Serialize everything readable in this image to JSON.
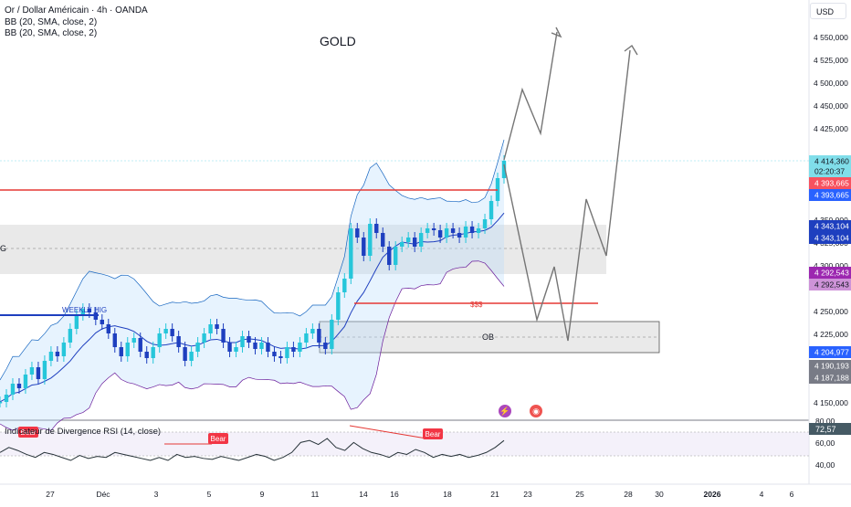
{
  "legend": {
    "symbol": "Or / Dollar Américain · 4h · OANDA",
    "indicator_1": "BB (20, SMA, close, 2)",
    "indicator_2": "BB (20, SMA, close, 2)"
  },
  "currency": "USD",
  "annotations": {
    "title": "GOLD",
    "weekly_high": "WEEKLY HIG",
    "sss": "$$$",
    "ob": "OB",
    "left_zone_label": "G",
    "bear_1": "Bear",
    "bear_2": "Bear",
    "bear_3": "Bear"
  },
  "rsi_legend": "Indicateur de Divergence RSI (14, close)",
  "rsi_axis": [
    "80,00",
    "60,00",
    "40,00"
  ],
  "rsi_tag": "72,57",
  "price_axis": [
    "4 550,000",
    "4 525,000",
    "4 500,000",
    "4 450,000",
    "4 425,000",
    "4 350,000",
    "4 325,000",
    "4 300,000",
    "4 250,000",
    "4 225,000",
    "4 150,000"
  ],
  "price_tags": [
    {
      "text": "4 414,360",
      "color": "#80deea",
      "fg": "#131722"
    },
    {
      "text": "02:20:37",
      "color": "#80deea",
      "fg": "#131722"
    },
    {
      "text": "4 393,665",
      "color": "#f7525f",
      "fg": "#ffffff"
    },
    {
      "text": "4 393,665",
      "color": "#2962ff",
      "fg": "#ffffff"
    },
    {
      "text": "4 343,104",
      "color": "#1e3fbf",
      "fg": "#ffffff"
    },
    {
      "text": "4 343,104",
      "color": "#1e3fbf",
      "fg": "#ffffff"
    },
    {
      "text": "4 292,543",
      "color": "#9c27b0",
      "fg": "#ffffff"
    },
    {
      "text": "4 292,543",
      "color": "#ce93d8",
      "fg": "#131722"
    },
    {
      "text": "4 204,977",
      "color": "#2962ff",
      "fg": "#ffffff"
    },
    {
      "text": "4 190,193",
      "color": "#787b86",
      "fg": "#ffffff"
    },
    {
      "text": "4 187,188",
      "color": "#787b86",
      "fg": "#ffffff"
    }
  ],
  "time_axis": [
    "27",
    "Déc",
    "3",
    "5",
    "9",
    "11",
    "14",
    "16",
    "18",
    "21",
    "23",
    "25",
    "28",
    "30",
    "2026",
    "4",
    "6"
  ],
  "chart_data": {
    "type": "line",
    "title": "GOLD",
    "series_info": "Or / Dollar Américain · 4h · OANDA",
    "ylim": [
      4130,
      4570
    ],
    "current_price": 4414.36,
    "levels": {
      "red_line": 4393.665,
      "bb_basis": 4343.104,
      "bb_lower": 4292.543,
      "weekly_high": 4250,
      "sss": 4260,
      "ob_top": 4238,
      "ob_bottom": 4203
    },
    "close_path": [
      4150,
      4158,
      4170,
      4165,
      4180,
      4188,
      4175,
      4195,
      4205,
      4200,
      4215,
      4230,
      4245,
      4252,
      4248,
      4240,
      4235,
      4225,
      4210,
      4200,
      4215,
      4220,
      4205,
      4198,
      4210,
      4225,
      4230,
      4222,
      4210,
      4195,
      4205,
      4215,
      4225,
      4235,
      4230,
      4215,
      4205,
      4210,
      4222,
      4215,
      4208,
      4215,
      4205,
      4200,
      4198,
      4210,
      4205,
      4215,
      4225,
      4230,
      4215,
      4208,
      4240,
      4270,
      4285,
      4340,
      4330,
      4310,
      4345,
      4335,
      4320,
      4300,
      4320,
      4325,
      4330,
      4320,
      4335,
      4340,
      4338,
      4330,
      4340,
      4335,
      4330,
      4342,
      4335,
      4340,
      4350,
      4370,
      4395,
      4414
    ],
    "projection": [
      [
        4414,
        4490
      ],
      [
        4450,
        4535
      ],
      [
        4385,
        4258
      ],
      [
        4245,
        4378
      ],
      [
        4228,
        4310
      ],
      [
        4390,
        4415
      ],
      [
        4320,
        4318
      ],
      [
        4545,
        4560
      ]
    ],
    "rsi": {
      "values": [
        60,
        65,
        62,
        58,
        55,
        60,
        58,
        55,
        52,
        57,
        54,
        56,
        55,
        60,
        58,
        56,
        54,
        52,
        55,
        52,
        58,
        55,
        56,
        54,
        53,
        56,
        54,
        52,
        55,
        58,
        56,
        52,
        55,
        60,
        70,
        72,
        68,
        74,
        65,
        62,
        70,
        64,
        60,
        58,
        55,
        60,
        58,
        63,
        60,
        55,
        58,
        56,
        58,
        55,
        57,
        60,
        65,
        72
      ],
      "ylim": [
        30,
        85
      ]
    }
  }
}
